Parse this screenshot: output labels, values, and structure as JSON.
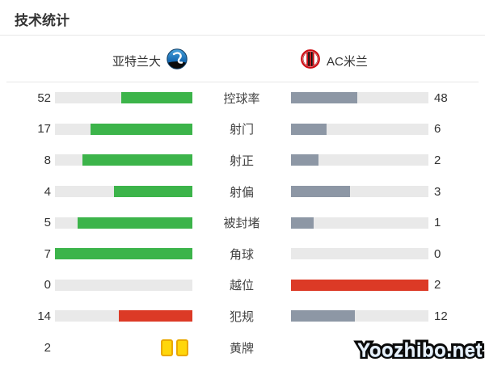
{
  "title": "技术统计",
  "header": {
    "home_team": "亚特兰大",
    "away_team": "AC米兰"
  },
  "colors": {
    "home_fill": "#3cb44a",
    "away_fill": "#8d97a5",
    "alert_fill": "#dc3a26",
    "track": "#e9e9e9",
    "card_yellow": "#ffd60a",
    "card_border": "#eaa800"
  },
  "watermark": {
    "text": "Yoozhibo.net"
  },
  "chart_data": {
    "type": "bar",
    "title": "技术统计",
    "teams": [
      "亚特兰大",
      "AC米兰"
    ],
    "categories": [
      "控球率",
      "射门",
      "射正",
      "射偏",
      "被封堵",
      "角球",
      "越位",
      "犯规",
      "黄牌"
    ],
    "series": [
      {
        "name": "亚特兰大",
        "values": [
          52,
          17,
          8,
          4,
          5,
          7,
          0,
          14,
          2
        ]
      },
      {
        "name": "AC米兰",
        "values": [
          48,
          6,
          2,
          3,
          1,
          0,
          2,
          12,
          null
        ]
      }
    ],
    "legend_position": "top",
    "grid": false,
    "rows": [
      {
        "label": "控球率",
        "home": "52",
        "away": "48",
        "home_pct": 52,
        "away_pct": 48,
        "home_color": "green",
        "away_color": "gray",
        "type": "bar"
      },
      {
        "label": "射门",
        "home": "17",
        "away": "6",
        "home_pct": 73.9,
        "away_pct": 26.1,
        "home_color": "green",
        "away_color": "gray",
        "type": "bar"
      },
      {
        "label": "射正",
        "home": "8",
        "away": "2",
        "home_pct": 80,
        "away_pct": 20,
        "home_color": "green",
        "away_color": "gray",
        "type": "bar"
      },
      {
        "label": "射偏",
        "home": "4",
        "away": "3",
        "home_pct": 57.1,
        "away_pct": 42.9,
        "home_color": "green",
        "away_color": "gray",
        "type": "bar"
      },
      {
        "label": "被封堵",
        "home": "5",
        "away": "1",
        "home_pct": 83.3,
        "away_pct": 16.7,
        "home_color": "green",
        "away_color": "gray",
        "type": "bar"
      },
      {
        "label": "角球",
        "home": "7",
        "away": "0",
        "home_pct": 100,
        "away_pct": 0,
        "home_color": "green",
        "away_color": "gray",
        "type": "bar"
      },
      {
        "label": "越位",
        "home": "0",
        "away": "2",
        "home_pct": 0,
        "away_pct": 100,
        "home_color": "green",
        "away_color": "red",
        "type": "bar"
      },
      {
        "label": "犯规",
        "home": "14",
        "away": "12",
        "home_pct": 53.8,
        "away_pct": 46.2,
        "home_color": "red",
        "away_color": "gray",
        "type": "bar"
      },
      {
        "label": "黄牌",
        "home": "2",
        "away": "",
        "home_pct": 0,
        "away_pct": 0,
        "home_cards": 2,
        "type": "cards"
      }
    ]
  }
}
